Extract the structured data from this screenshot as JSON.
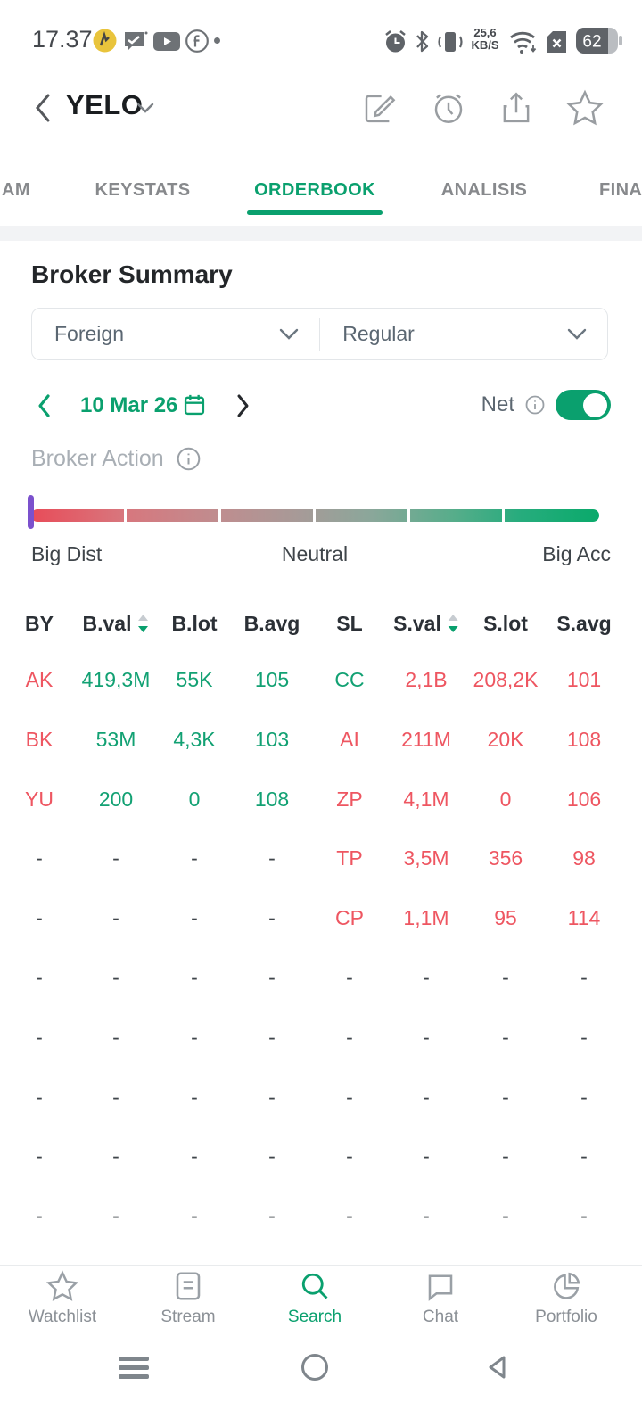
{
  "colors": {
    "accent": "#0aa06e",
    "green": "#12a173",
    "red": "#ee5661",
    "purple": "#7b51cd",
    "gradient_left": "#e84c59",
    "gradient_right": "#0aaa6b"
  },
  "status_bar": {
    "time": "17.37",
    "net_speed_line1": "25,6",
    "net_speed_line2": "KB/S",
    "battery_percent": "62",
    "icons": [
      "alarm-icon",
      "bluetooth-icon",
      "vibrate-icon",
      "wifi-icon",
      "sim-missing-icon",
      "battery-icon"
    ]
  },
  "header": {
    "title": "YELO"
  },
  "tabs": [
    {
      "label": "AM",
      "active": false
    },
    {
      "label": "KEYSTATS",
      "active": false
    },
    {
      "label": "ORDERBOOK",
      "active": true
    },
    {
      "label": "ANALISIS",
      "active": false
    },
    {
      "label": "FINA",
      "active": false
    }
  ],
  "broker_summary": {
    "title": "Broker Summary",
    "market_filter": "Foreign",
    "board_filter": "Regular"
  },
  "date_nav": {
    "date": "10 Mar 26",
    "net_label": "Net",
    "net_on": true
  },
  "broker_action": {
    "label": "Broker Action",
    "scale_left": "Big Dist",
    "scale_center": "Neutral",
    "scale_right": "Big Acc"
  },
  "table": {
    "headers": [
      "BY",
      "B.val",
      "B.lot",
      "B.avg",
      "SL",
      "S.val",
      "S.lot",
      "S.avg"
    ],
    "sorted_columns": [
      "B.val",
      "S.val"
    ],
    "rows": [
      [
        [
          "AK",
          "red"
        ],
        [
          "419,3M",
          "green"
        ],
        [
          "55K",
          "green"
        ],
        [
          "105",
          "green"
        ],
        [
          "CC",
          "green"
        ],
        [
          "2,1B",
          "red"
        ],
        [
          "208,2K",
          "red"
        ],
        [
          "101",
          "red"
        ]
      ],
      [
        [
          "BK",
          "red"
        ],
        [
          "53M",
          "green"
        ],
        [
          "4,3K",
          "green"
        ],
        [
          "103",
          "green"
        ],
        [
          "AI",
          "red"
        ],
        [
          "211M",
          "red"
        ],
        [
          "20K",
          "red"
        ],
        [
          "108",
          "red"
        ]
      ],
      [
        [
          "YU",
          "red"
        ],
        [
          "200",
          "green"
        ],
        [
          "0",
          "green"
        ],
        [
          "108",
          "green"
        ],
        [
          "ZP",
          "red"
        ],
        [
          "4,1M",
          "red"
        ],
        [
          "0",
          "red"
        ],
        [
          "106",
          "red"
        ]
      ],
      [
        [
          "-",
          "dash"
        ],
        [
          "-",
          "dash"
        ],
        [
          "-",
          "dash"
        ],
        [
          "-",
          "dash"
        ],
        [
          "TP",
          "red"
        ],
        [
          "3,5M",
          "red"
        ],
        [
          "356",
          "red"
        ],
        [
          "98",
          "red"
        ]
      ],
      [
        [
          "-",
          "dash"
        ],
        [
          "-",
          "dash"
        ],
        [
          "-",
          "dash"
        ],
        [
          "-",
          "dash"
        ],
        [
          "CP",
          "red"
        ],
        [
          "1,1M",
          "red"
        ],
        [
          "95",
          "red"
        ],
        [
          "114",
          "red"
        ]
      ],
      [
        [
          "-",
          "dash"
        ],
        [
          "-",
          "dash"
        ],
        [
          "-",
          "dash"
        ],
        [
          "-",
          "dash"
        ],
        [
          "-",
          "dash"
        ],
        [
          "-",
          "dash"
        ],
        [
          "-",
          "dash"
        ],
        [
          "-",
          "dash"
        ]
      ],
      [
        [
          "-",
          "dash"
        ],
        [
          "-",
          "dash"
        ],
        [
          "-",
          "dash"
        ],
        [
          "-",
          "dash"
        ],
        [
          "-",
          "dash"
        ],
        [
          "-",
          "dash"
        ],
        [
          "-",
          "dash"
        ],
        [
          "-",
          "dash"
        ]
      ],
      [
        [
          "-",
          "dash"
        ],
        [
          "-",
          "dash"
        ],
        [
          "-",
          "dash"
        ],
        [
          "-",
          "dash"
        ],
        [
          "-",
          "dash"
        ],
        [
          "-",
          "dash"
        ],
        [
          "-",
          "dash"
        ],
        [
          "-",
          "dash"
        ]
      ],
      [
        [
          "-",
          "dash"
        ],
        [
          "-",
          "dash"
        ],
        [
          "-",
          "dash"
        ],
        [
          "-",
          "dash"
        ],
        [
          "-",
          "dash"
        ],
        [
          "-",
          "dash"
        ],
        [
          "-",
          "dash"
        ],
        [
          "-",
          "dash"
        ]
      ],
      [
        [
          "-",
          "dash"
        ],
        [
          "-",
          "dash"
        ],
        [
          "-",
          "dash"
        ],
        [
          "-",
          "dash"
        ],
        [
          "-",
          "dash"
        ],
        [
          "-",
          "dash"
        ],
        [
          "-",
          "dash"
        ],
        [
          "-",
          "dash"
        ]
      ]
    ]
  },
  "bottom_nav": {
    "items": [
      {
        "label": "Watchlist",
        "active": false
      },
      {
        "label": "Stream",
        "active": false
      },
      {
        "label": "Search",
        "active": true
      },
      {
        "label": "Chat",
        "active": false
      },
      {
        "label": "Portfolio",
        "active": false
      }
    ]
  }
}
